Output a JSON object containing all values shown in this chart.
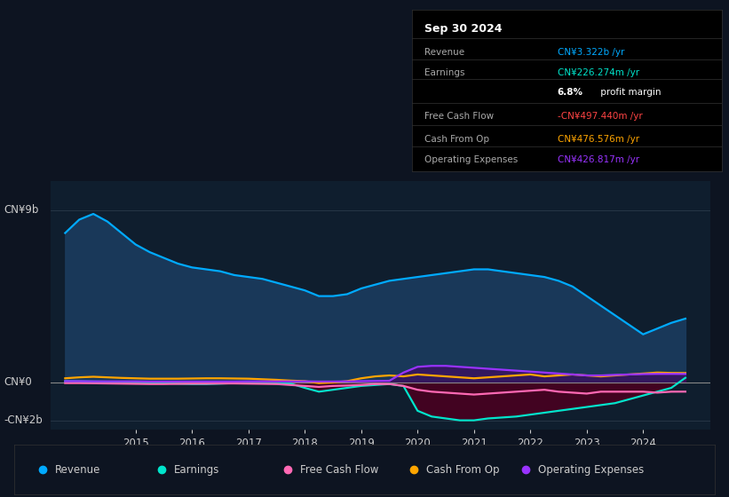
{
  "bg_color": "#0d1421",
  "plot_bg_color": "#0f1e2e",
  "title": "Sep 30 2024",
  "ylabel_top": "CN¥9b",
  "ylabel_zero": "CN¥0",
  "ylabel_bottom": "-CN¥2b",
  "legend": [
    {
      "label": "Revenue",
      "color": "#00aaff"
    },
    {
      "label": "Earnings",
      "color": "#00e5cc"
    },
    {
      "label": "Free Cash Flow",
      "color": "#ff69b4"
    },
    {
      "label": "Cash From Op",
      "color": "#ffa500"
    },
    {
      "label": "Operating Expenses",
      "color": "#9933ff"
    }
  ],
  "xlim": [
    2013.5,
    2025.2
  ],
  "ylim": [
    -2500000000.0,
    10500000000.0
  ],
  "revenue_color": "#00aaff",
  "revenue_fill_color": "#1a3a5c",
  "earnings_color": "#00e5cc",
  "earnings_fill_color": "#4a0020",
  "fcf_color": "#ff69b4",
  "cash_color": "#ffa500",
  "opex_color": "#9933ff",
  "opex_fill_color": "#3a1060",
  "grid_color": "#2a3a4a",
  "text_color": "#cccccc",
  "zero_line_color": "#888888",
  "revenue_x": [
    2013.75,
    2014.0,
    2014.25,
    2014.5,
    2014.75,
    2015.0,
    2015.25,
    2015.5,
    2015.75,
    2016.0,
    2016.25,
    2016.5,
    2016.75,
    2017.0,
    2017.25,
    2017.5,
    2017.75,
    2018.0,
    2018.25,
    2018.5,
    2018.75,
    2019.0,
    2019.25,
    2019.5,
    2019.75,
    2020.0,
    2020.25,
    2020.5,
    2020.75,
    2021.0,
    2021.25,
    2021.5,
    2021.75,
    2022.0,
    2022.25,
    2022.5,
    2022.75,
    2023.0,
    2023.25,
    2023.5,
    2023.75,
    2024.0,
    2024.25,
    2024.5,
    2024.75
  ],
  "revenue_y": [
    7800000000.0,
    8500000000.0,
    8800000000.0,
    8400000000.0,
    7800000000.0,
    7200000000.0,
    6800000000.0,
    6500000000.0,
    6200000000.0,
    6000000000.0,
    5900000000.0,
    5800000000.0,
    5600000000.0,
    5500000000.0,
    5400000000.0,
    5200000000.0,
    5000000000.0,
    4800000000.0,
    4500000000.0,
    4500000000.0,
    4600000000.0,
    4900000000.0,
    5100000000.0,
    5300000000.0,
    5400000000.0,
    5500000000.0,
    5600000000.0,
    5700000000.0,
    5800000000.0,
    5900000000.0,
    5900000000.0,
    5800000000.0,
    5700000000.0,
    5600000000.0,
    5500000000.0,
    5300000000.0,
    5000000000.0,
    4500000000.0,
    4000000000.0,
    3500000000.0,
    3000000000.0,
    2500000000.0,
    2800000000.0,
    3100000000.0,
    3322000000.0
  ],
  "earnings_x": [
    2013.75,
    2014.0,
    2014.25,
    2014.5,
    2014.75,
    2015.0,
    2015.25,
    2015.5,
    2015.75,
    2016.0,
    2016.25,
    2016.5,
    2016.75,
    2017.0,
    2017.25,
    2017.5,
    2017.75,
    2018.0,
    2018.25,
    2018.5,
    2018.75,
    2019.0,
    2019.25,
    2019.5,
    2019.75,
    2020.0,
    2020.25,
    2020.5,
    2020.75,
    2021.0,
    2021.25,
    2021.5,
    2021.75,
    2022.0,
    2022.25,
    2022.5,
    2022.75,
    2023.0,
    2023.25,
    2023.5,
    2023.75,
    2024.0,
    2024.25,
    2024.5,
    2024.75
  ],
  "earnings_y": [
    50000000.0,
    40000000.0,
    30000000.0,
    20000000.0,
    10000000.0,
    0.0,
    -20000000.0,
    -50000000.0,
    -80000000.0,
    -100000000.0,
    -100000000.0,
    -80000000.0,
    -50000000.0,
    -50000000.0,
    -60000000.0,
    -70000000.0,
    -80000000.0,
    -300000000.0,
    -500000000.0,
    -400000000.0,
    -300000000.0,
    -200000000.0,
    -150000000.0,
    -100000000.0,
    -200000000.0,
    -1500000000.0,
    -1800000000.0,
    -1900000000.0,
    -2000000000.0,
    -2000000000.0,
    -1900000000.0,
    -1850000000.0,
    -1800000000.0,
    -1700000000.0,
    -1600000000.0,
    -1500000000.0,
    -1400000000.0,
    -1300000000.0,
    -1200000000.0,
    -1100000000.0,
    -900000000.0,
    -700000000.0,
    -500000000.0,
    -300000000.0,
    226000000.0
  ],
  "fcf_x": [
    2013.75,
    2014.0,
    2014.25,
    2014.5,
    2014.75,
    2015.0,
    2015.25,
    2015.5,
    2015.75,
    2016.0,
    2016.25,
    2016.5,
    2016.75,
    2017.0,
    2017.25,
    2017.5,
    2017.75,
    2018.0,
    2018.25,
    2018.5,
    2018.75,
    2019.0,
    2019.25,
    2019.5,
    2019.75,
    2020.0,
    2020.25,
    2020.5,
    2020.75,
    2021.0,
    2021.25,
    2021.5,
    2021.75,
    2022.0,
    2022.25,
    2022.5,
    2022.75,
    2023.0,
    2023.25,
    2023.5,
    2023.75,
    2024.0,
    2024.25,
    2024.5,
    2024.75
  ],
  "fcf_y": [
    -50000000.0,
    -50000000.0,
    -60000000.0,
    -70000000.0,
    -80000000.0,
    -90000000.0,
    -100000000.0,
    -100000000.0,
    -90000000.0,
    -80000000.0,
    -80000000.0,
    -70000000.0,
    -70000000.0,
    -80000000.0,
    -90000000.0,
    -100000000.0,
    -150000000.0,
    -200000000.0,
    -250000000.0,
    -200000000.0,
    -180000000.0,
    -150000000.0,
    -100000000.0,
    -100000000.0,
    -200000000.0,
    -400000000.0,
    -500000000.0,
    -550000000.0,
    -600000000.0,
    -650000000.0,
    -600000000.0,
    -550000000.0,
    -500000000.0,
    -450000000.0,
    -400000000.0,
    -500000000.0,
    -550000000.0,
    -600000000.0,
    -500000000.0,
    -500000000.0,
    -500000000.0,
    -500000000.0,
    -550000000.0,
    -500000000.0,
    -497400000.0
  ],
  "cash_x": [
    2013.75,
    2014.0,
    2014.25,
    2014.5,
    2014.75,
    2015.0,
    2015.25,
    2015.5,
    2015.75,
    2016.0,
    2016.25,
    2016.5,
    2016.75,
    2017.0,
    2017.25,
    2017.5,
    2017.75,
    2018.0,
    2018.25,
    2018.5,
    2018.75,
    2019.0,
    2019.25,
    2019.5,
    2019.75,
    2020.0,
    2020.25,
    2020.5,
    2020.75,
    2021.0,
    2021.25,
    2021.5,
    2021.75,
    2022.0,
    2022.25,
    2022.5,
    2022.75,
    2023.0,
    2023.25,
    2023.5,
    2023.75,
    2024.0,
    2024.25,
    2024.5,
    2024.75
  ],
  "cash_y": [
    200000000.0,
    250000000.0,
    280000000.0,
    250000000.0,
    220000000.0,
    200000000.0,
    180000000.0,
    180000000.0,
    180000000.0,
    190000000.0,
    200000000.0,
    200000000.0,
    190000000.0,
    180000000.0,
    150000000.0,
    120000000.0,
    80000000.0,
    50000000.0,
    -50000000.0,
    -20000000.0,
    50000000.0,
    200000000.0,
    300000000.0,
    350000000.0,
    300000000.0,
    400000000.0,
    350000000.0,
    300000000.0,
    250000000.0,
    200000000.0,
    250000000.0,
    300000000.0,
    350000000.0,
    400000000.0,
    300000000.0,
    350000000.0,
    400000000.0,
    350000000.0,
    300000000.0,
    350000000.0,
    400000000.0,
    450000000.0,
    500000000.0,
    480000000.0,
    476600000.0
  ],
  "opex_x": [
    2013.75,
    2014.0,
    2014.25,
    2014.5,
    2014.75,
    2015.0,
    2015.25,
    2015.5,
    2015.75,
    2016.0,
    2016.25,
    2016.5,
    2016.75,
    2017.0,
    2017.25,
    2017.5,
    2017.75,
    2018.0,
    2018.25,
    2018.5,
    2018.75,
    2019.0,
    2019.25,
    2019.5,
    2019.75,
    2020.0,
    2020.25,
    2020.5,
    2020.75,
    2021.0,
    2021.25,
    2021.5,
    2021.75,
    2022.0,
    2022.25,
    2022.5,
    2022.75,
    2023.0,
    2023.25,
    2023.5,
    2023.75,
    2024.0,
    2024.25,
    2024.5,
    2024.75
  ],
  "opex_y": [
    50000000.0,
    50000000.0,
    40000000.0,
    40000000.0,
    40000000.0,
    40000000.0,
    30000000.0,
    30000000.0,
    30000000.0,
    30000000.0,
    30000000.0,
    30000000.0,
    30000000.0,
    40000000.0,
    40000000.0,
    40000000.0,
    40000000.0,
    40000000.0,
    30000000.0,
    30000000.0,
    40000000.0,
    50000000.0,
    60000000.0,
    70000000.0,
    500000000.0,
    800000000.0,
    850000000.0,
    850000000.0,
    800000000.0,
    750000000.0,
    700000000.0,
    650000000.0,
    600000000.0,
    550000000.0,
    500000000.0,
    450000000.0,
    400000000.0,
    350000000.0,
    350000000.0,
    380000000.0,
    400000000.0,
    420000000.0,
    430000000.0,
    430000000.0,
    426800000.0
  ],
  "info_rows": [
    {
      "label": "Revenue",
      "value": "CN¥3.322b /yr",
      "value_color": "#00aaff"
    },
    {
      "label": "Earnings",
      "value": "CN¥226.274m /yr",
      "value_color": "#00e5cc"
    },
    {
      "label": "",
      "value": "6.8% profit margin",
      "value_color": "#ffffff",
      "bold_prefix": "6.8%",
      "suffix": " profit margin"
    },
    {
      "label": "Free Cash Flow",
      "value": "-CN¥497.440m /yr",
      "value_color": "#ff4444"
    },
    {
      "label": "Cash From Op",
      "value": "CN¥476.576m /yr",
      "value_color": "#ffa500"
    },
    {
      "label": "Operating Expenses",
      "value": "CN¥426.817m /yr",
      "value_color": "#9933ff"
    }
  ]
}
